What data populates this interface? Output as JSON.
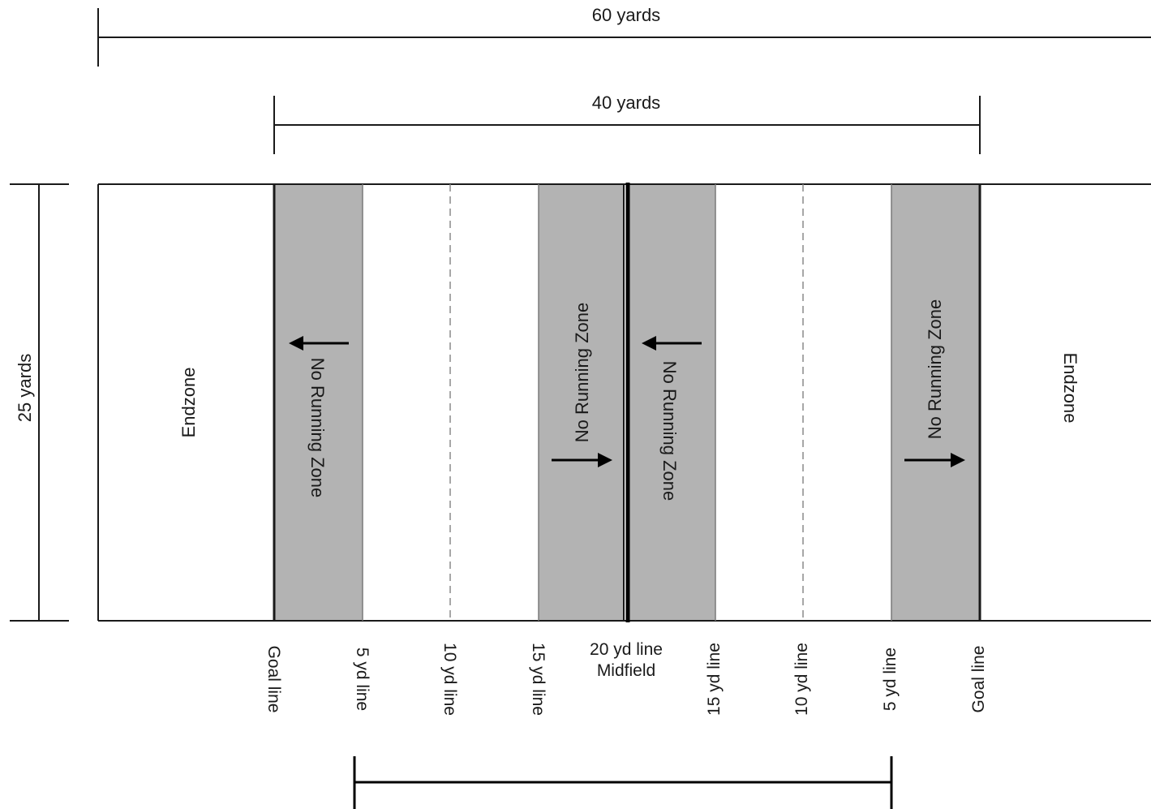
{
  "dimensions": {
    "total_length": "60 yards",
    "playing_length": "40 yards",
    "width": "25 yards"
  },
  "zones": {
    "endzone_left": "Endzone",
    "endzone_right": "Endzone",
    "no_run_1": "No Running Zone",
    "no_run_2": "No Running Zone",
    "no_run_3": "No Running Zone",
    "no_run_4": "No Running Zone"
  },
  "line_labels": {
    "goal_line_left": "Goal line",
    "five_yd_left": "5 yd line",
    "ten_yd_left": "10 yd line",
    "fifteen_yd_left": "15 yd line",
    "midfield_line1": "20 yd line",
    "midfield_line2": "Midfield",
    "fifteen_yd_right": "15 yd line",
    "ten_yd_right": "10 yd line",
    "five_yd_right": "5 yd line",
    "goal_line_right": "Goal line"
  },
  "colors": {
    "no_running_zone": "#b3b3b3",
    "lines": "#1a1a1a",
    "dashed_line": "#8a8a8a"
  }
}
